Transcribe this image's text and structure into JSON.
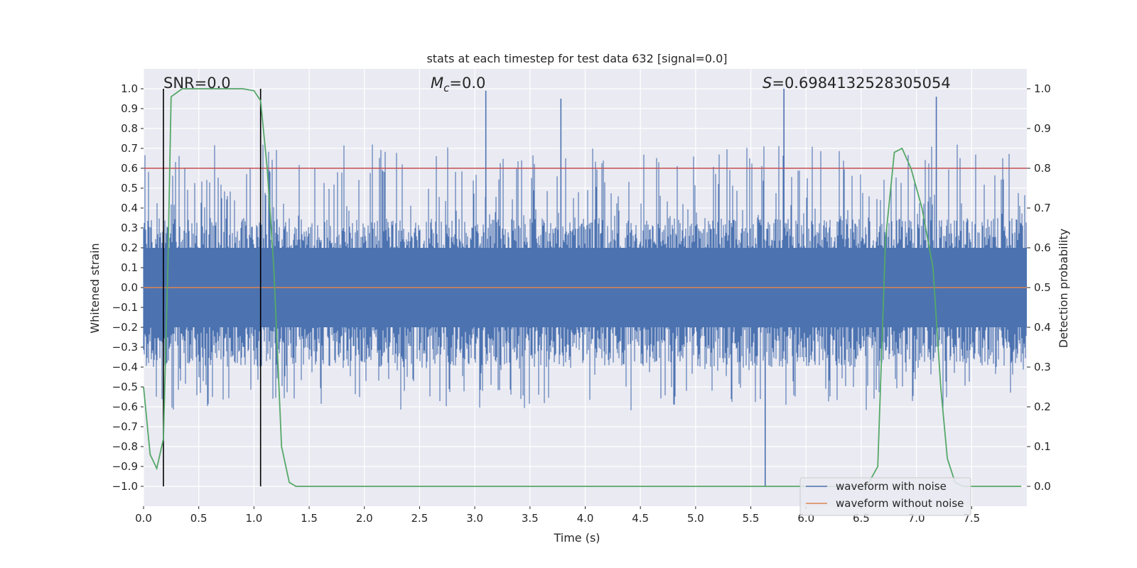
{
  "chart_data": {
    "type": "line",
    "title": "stats at each timestep for test data 632 [signal=0.0]",
    "xlabel": "Time (s)",
    "ylabel": "Whitened strain",
    "ylabel_right": "Detection probability",
    "xlim": [
      0,
      8
    ],
    "ylim": [
      -1.1,
      1.1
    ],
    "ylim_right": [
      -0.05,
      1.05
    ],
    "xticks": [
      0.0,
      0.5,
      1.0,
      1.5,
      2.0,
      2.5,
      3.0,
      3.5,
      4.0,
      4.5,
      5.0,
      5.5,
      6.0,
      6.5,
      7.0,
      7.5
    ],
    "xtick_labels": [
      "0.0",
      "0.5",
      "1.0",
      "1.5",
      "2.0",
      "2.5",
      "3.0",
      "3.5",
      "4.0",
      "4.5",
      "5.0",
      "5.5",
      "6.0",
      "6.5",
      "7.0",
      "7.5"
    ],
    "yticks": [
      1.0,
      0.9,
      0.8,
      0.7,
      0.6,
      0.5,
      0.4,
      0.3,
      0.2,
      0.1,
      0.0,
      -0.1,
      -0.2,
      -0.3,
      -0.4,
      -0.5,
      -0.6,
      -0.7,
      -0.8,
      -0.9,
      -1.0
    ],
    "ytick_labels": [
      "1.0",
      "0.9",
      "0.8",
      "0.7",
      "0.6",
      "0.5",
      "0.4",
      "0.3",
      "0.2",
      "0.1",
      "0.0",
      "−0.1",
      "−0.2",
      "−0.3",
      "−0.4",
      "−0.5",
      "−0.6",
      "−0.7",
      "−0.8",
      "−0.9",
      "−1.0"
    ],
    "yticks_right": [
      1.0,
      0.9,
      0.8,
      0.7,
      0.6,
      0.5,
      0.4,
      0.3,
      0.2,
      0.1,
      0.0
    ],
    "ytick_labels_right": [
      "1.0",
      "0.9",
      "0.8",
      "0.7",
      "0.6",
      "0.5",
      "0.4",
      "0.3",
      "0.2",
      "0.1",
      "0.0"
    ],
    "grid": true,
    "annotations": {
      "snr": "SNR=0.0",
      "mc_symbol": "M",
      "mc_sub": "c",
      "mc_value": "=0.0",
      "s_symbol": "S",
      "s_value": "=0.6984132528305054"
    },
    "threshold": {
      "value": 0.8,
      "axis": "right",
      "color": "#c44e52"
    },
    "markers": {
      "x": [
        0.18,
        1.06
      ],
      "y_range": [
        -1.0,
        1.0
      ],
      "color": "#000000"
    },
    "noise_envelope": {
      "name": "waveform with noise",
      "color": "#4c72b0",
      "typical_upper": 0.35,
      "typical_lower": -0.4,
      "peak_max": 1.0,
      "peak_min": -1.0
    },
    "series": [
      {
        "name": "waveform without noise",
        "color": "#dd8452",
        "x": [
          0,
          8
        ],
        "y": [
          0.0,
          0.0
        ]
      },
      {
        "name": "detection probability",
        "axis": "right",
        "color": "#55a868",
        "x": [
          0.0,
          0.06,
          0.12,
          0.18,
          0.22,
          0.25,
          0.3,
          0.35,
          0.6,
          0.9,
          1.0,
          1.06,
          1.12,
          1.18,
          1.25,
          1.32,
          1.38,
          1.45,
          6.55,
          6.65,
          6.72,
          6.8,
          6.87,
          6.95,
          7.05,
          7.15,
          7.22,
          7.28,
          7.35,
          7.42,
          7.95
        ],
        "y": [
          0.25,
          0.08,
          0.045,
          0.12,
          0.55,
          0.98,
          0.99,
          1.0,
          1.0,
          1.0,
          0.995,
          0.97,
          0.8,
          0.55,
          0.1,
          0.01,
          0.0,
          0.0,
          0.0,
          0.05,
          0.62,
          0.84,
          0.85,
          0.8,
          0.7,
          0.55,
          0.25,
          0.07,
          0.01,
          0.0,
          0.0
        ]
      }
    ],
    "legend": {
      "position": "lower right",
      "entries": [
        {
          "label": "waveform with noise",
          "color": "#4c72b0"
        },
        {
          "label": "waveform without noise",
          "color": "#dd8452"
        }
      ]
    }
  }
}
